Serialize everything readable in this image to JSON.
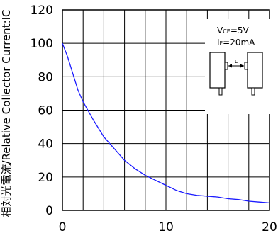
{
  "chart_data": {
    "type": "line",
    "title": "",
    "xlabel": "",
    "ylabel": "相対光電流/Relative Collector Current:IC",
    "xlim": [
      0,
      20
    ],
    "ylim": [
      0,
      120
    ],
    "x_ticks": [
      0,
      10,
      20
    ],
    "y_ticks": [
      0,
      20,
      40,
      60,
      80,
      100,
      120
    ],
    "x_tick_labels": [
      "0",
      "10",
      "20"
    ],
    "y_tick_labels": [
      "0",
      "20",
      "40",
      "60",
      "80",
      "100",
      "120"
    ],
    "grid": true,
    "legend": "none",
    "series": [
      {
        "color": "#1a1aff",
        "x": [
          0,
          0.5,
          1,
          1.5,
          2,
          3,
          4,
          5,
          6,
          7,
          8,
          9,
          10,
          11,
          12,
          13,
          14,
          15,
          16,
          17,
          18,
          19,
          20
        ],
        "y": [
          100,
          92,
          82,
          72,
          65,
          54,
          44,
          37,
          30,
          25,
          21,
          18,
          15,
          12,
          10,
          9,
          8.5,
          8,
          7,
          6.5,
          5.5,
          5,
          4.5
        ]
      }
    ],
    "annotations": {
      "conditions": [
        "VCE=5V",
        "IF=20mA"
      ],
      "distance_label": "L"
    }
  }
}
